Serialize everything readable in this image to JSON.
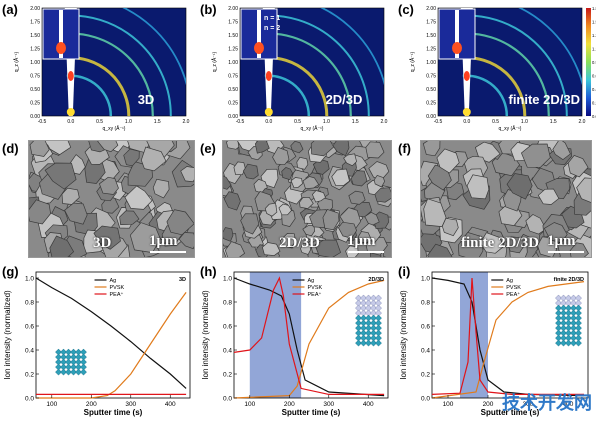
{
  "figure": {
    "panels_giwaxs": [
      {
        "label": "(a)",
        "tag": "3D",
        "insert_labels": []
      },
      {
        "label": "(b)",
        "tag": "2D/3D",
        "insert_labels": [
          "n = 1",
          "n = 2"
        ]
      },
      {
        "label": "(c)",
        "tag": "finite 2D/3D",
        "insert_labels": []
      }
    ],
    "giwaxs_axes": {
      "ylabel": "q_z (Å⁻¹)",
      "xlabel": "q_xy (Å⁻¹)",
      "yticks": [
        "2.00",
        "1.75",
        "1.50",
        "1.25",
        "1.00",
        "0.75",
        "0.50",
        "0.25",
        "0.00"
      ],
      "xticks": [
        "-0.5",
        "0.0",
        "0.5",
        "1.0",
        "1.5",
        "2.0"
      ]
    },
    "colorbar_ticks": [
      "1.800",
      "1.575",
      "1.350",
      "1.125",
      "0.9000",
      "0.6750",
      "0.4500",
      "0.2250",
      "0.000"
    ],
    "panels_sem": [
      {
        "label": "(d)",
        "tag": "3D",
        "scale": "1μm"
      },
      {
        "label": "(e)",
        "tag": "2D/3D",
        "scale": "1μm"
      },
      {
        "label": "(f)",
        "tag": "finite 2D/3D",
        "scale": "1μm"
      }
    ],
    "panels_tof": [
      {
        "label": "(g)",
        "title": "3D"
      },
      {
        "label": "(h)",
        "title": "2D/3D"
      },
      {
        "label": "(i)",
        "title": "finite 2D/3D"
      }
    ],
    "tof_axes": {
      "ylabel": "Ion intensity (normalized)",
      "xlabel": "Sputter time (s)",
      "yticks": [
        "0.0",
        "0.2",
        "0.4",
        "0.6",
        "0.8",
        "1.0"
      ],
      "xticks": [
        "100",
        "200",
        "300",
        "400"
      ]
    },
    "legend": [
      "Ag",
      "PVSK",
      "PEA⁺"
    ],
    "colors": {
      "ag": "#111111",
      "pvsk": "#e07b1c",
      "pea": "#e0141a",
      "highlight": "#7f97d0"
    },
    "watermark": "技术开发网"
  },
  "chart_data": [
    {
      "type": "line",
      "title": "3D",
      "xlabel": "Sputter time (s)",
      "ylabel": "Ion intensity (normalized)",
      "xlim": [
        60,
        450
      ],
      "ylim": [
        0,
        1.05
      ],
      "series": [
        {
          "name": "Ag",
          "x": [
            60,
            100,
            150,
            200,
            250,
            300,
            350,
            400,
            440
          ],
          "y": [
            1.0,
            0.92,
            0.83,
            0.72,
            0.6,
            0.47,
            0.33,
            0.2,
            0.08
          ]
        },
        {
          "name": "PVSK",
          "x": [
            60,
            200,
            240,
            260,
            300,
            350,
            400,
            440
          ],
          "y": [
            0.0,
            0.0,
            0.02,
            0.06,
            0.2,
            0.45,
            0.7,
            0.88
          ]
        },
        {
          "name": "PEA⁺",
          "x": [
            60,
            150,
            250,
            350,
            440
          ],
          "y": [
            0.03,
            0.03,
            0.03,
            0.03,
            0.03
          ]
        }
      ]
    },
    {
      "type": "line",
      "title": "2D/3D",
      "xlabel": "Sputter time (s)",
      "ylabel": "Ion intensity (normalized)",
      "xlim": [
        60,
        450
      ],
      "ylim": [
        0,
        1.05
      ],
      "highlight_x": [
        100,
        230
      ],
      "series": [
        {
          "name": "Ag",
          "x": [
            60,
            100,
            150,
            180,
            200,
            220,
            240,
            300,
            440
          ],
          "y": [
            1.0,
            0.95,
            0.9,
            0.85,
            0.7,
            0.4,
            0.15,
            0.05,
            0.02
          ]
        },
        {
          "name": "PVSK",
          "x": [
            60,
            200,
            220,
            250,
            300,
            350,
            400,
            440
          ],
          "y": [
            0.0,
            0.02,
            0.1,
            0.45,
            0.75,
            0.88,
            0.95,
            0.98
          ]
        },
        {
          "name": "PEA⁺",
          "x": [
            60,
            100,
            130,
            160,
            175,
            185,
            200,
            230,
            300,
            440
          ],
          "y": [
            0.38,
            0.4,
            0.5,
            0.9,
            1.0,
            0.85,
            0.45,
            0.08,
            0.03,
            0.03
          ]
        }
      ]
    },
    {
      "type": "line",
      "title": "finite 2D/3D",
      "xlabel": "Sputter time (s)",
      "ylabel": "Ion intensity (normalized)",
      "xlim": [
        60,
        450
      ],
      "ylim": [
        0,
        1.05
      ],
      "highlight_x": [
        130,
        200
      ],
      "series": [
        {
          "name": "Ag",
          "x": [
            60,
            100,
            140,
            160,
            180,
            200,
            240,
            300,
            440
          ],
          "y": [
            1.0,
            0.98,
            0.95,
            0.8,
            0.4,
            0.15,
            0.05,
            0.03,
            0.02
          ]
        },
        {
          "name": "PVSK",
          "x": [
            60,
            170,
            190,
            220,
            260,
            300,
            350,
            440
          ],
          "y": [
            0.0,
            0.05,
            0.3,
            0.65,
            0.8,
            0.88,
            0.93,
            0.97
          ]
        },
        {
          "name": "PEA⁺",
          "x": [
            60,
            130,
            150,
            160,
            170,
            180,
            200,
            260,
            440
          ],
          "y": [
            0.03,
            0.04,
            0.3,
            1.0,
            0.55,
            0.15,
            0.05,
            0.03,
            0.03
          ]
        }
      ]
    }
  ]
}
